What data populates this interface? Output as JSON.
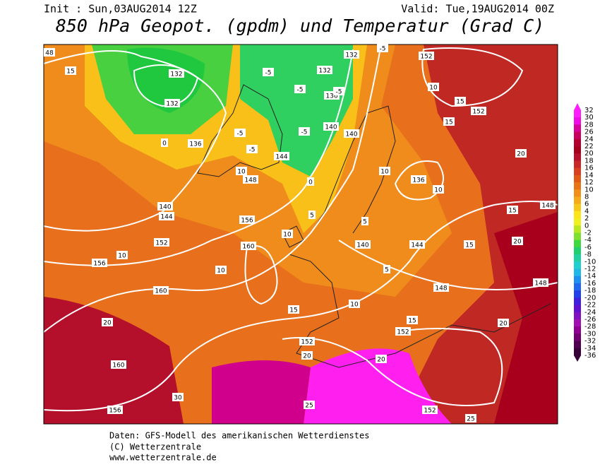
{
  "header": {
    "init": "Init : Sun,03AUG2014 12Z",
    "valid": "Valid: Tue,19AUG2014 00Z",
    "title": "850 hPa Geopot. (gpdm) und Temperatur (Grad C)"
  },
  "color_scale": {
    "labels": [
      "32",
      "30",
      "28",
      "26",
      "24",
      "22",
      "20",
      "18",
      "16",
      "14",
      "12",
      "10",
      "8",
      "6",
      "4",
      "2",
      "0",
      "-2",
      "-4",
      "-6",
      "-8",
      "-10",
      "-12",
      "-14",
      "-16",
      "-18",
      "-20",
      "-22",
      "-24",
      "-26",
      "-28",
      "-30",
      "-32",
      "-34",
      "-36"
    ],
    "colors": [
      "#ff1cff",
      "#f00ae6",
      "#d8009a",
      "#c80060",
      "#b4002c",
      "#a5001c",
      "#b8102a",
      "#c82828",
      "#d84020",
      "#e05a18",
      "#e87418",
      "#f09018",
      "#f4ac18",
      "#f8c818",
      "#fce418",
      "#f0f020",
      "#b8e820",
      "#80e030",
      "#40d840",
      "#20d070",
      "#20d0a0",
      "#20d0d0",
      "#20b8e8",
      "#2090f0",
      "#2068f0",
      "#2040e8",
      "#4020e0",
      "#6010d0",
      "#8010c0",
      "#a010b0",
      "#900090",
      "#700070",
      "#500050",
      "#380038"
    ]
  },
  "contour_labels": [
    "48",
    "132",
    "132",
    "136",
    "140",
    "144",
    "152",
    "156",
    "160",
    "160",
    "156",
    "148",
    "156",
    "160",
    "144",
    "140",
    "140",
    "132",
    "132",
    "136",
    "152",
    "152",
    "136",
    "140",
    "144",
    "148",
    "152",
    "152",
    "152",
    "148",
    "148",
    "-5",
    "-5",
    "-5",
    "-5",
    "-5",
    "-5",
    "-5",
    "0",
    "0",
    "5",
    "5",
    "5",
    "10",
    "15",
    "15",
    "20",
    "10",
    "10",
    "10",
    "10",
    "10",
    "10",
    "10",
    "15",
    "15",
    "15",
    "15",
    "20",
    "20",
    "20",
    "20",
    "20",
    "25",
    "25",
    "30",
    "15"
  ],
  "footer": {
    "lines": [
      "Daten: GFS-Modell des amerikanischen Wetterdienstes",
      "(C) Wetterzentrale",
      "www.wetterzentrale.de"
    ]
  }
}
